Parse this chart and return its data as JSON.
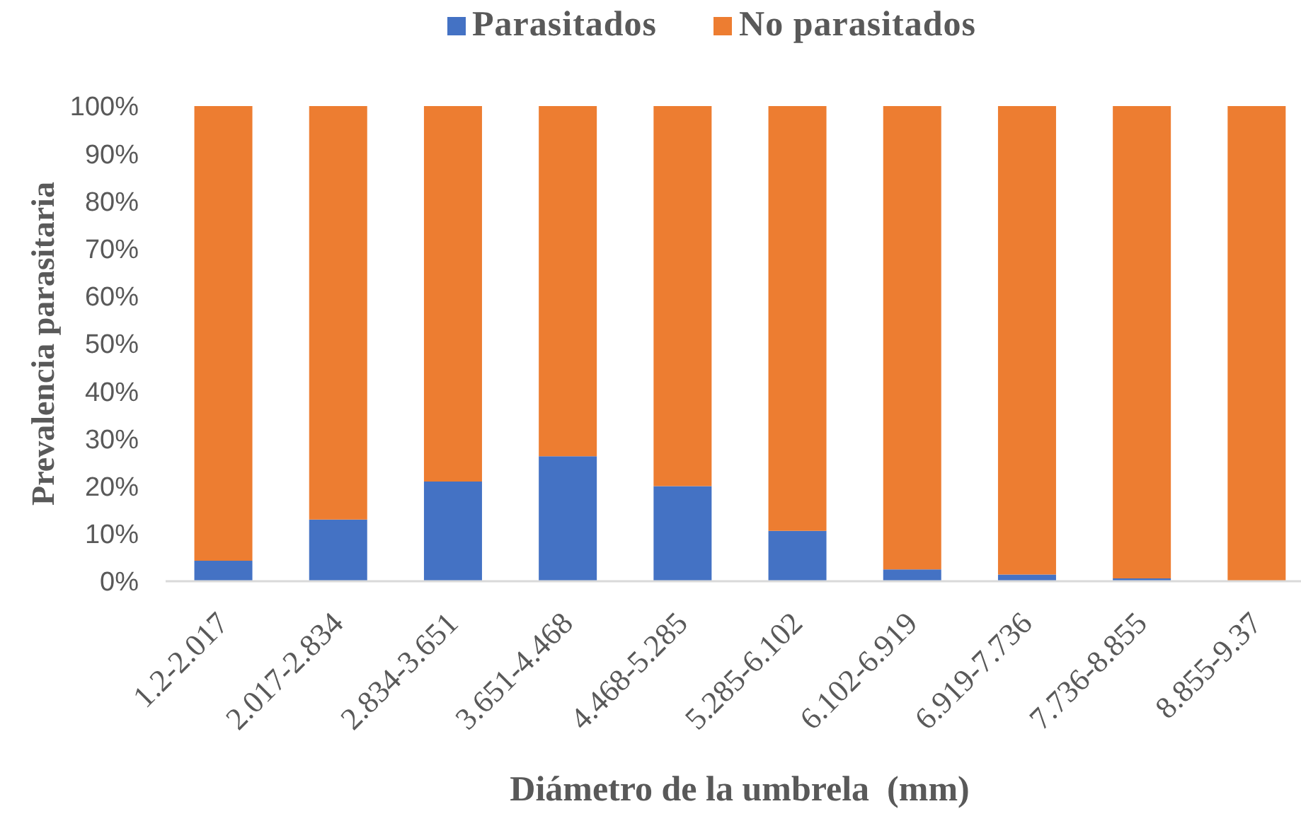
{
  "chart_data": {
    "type": "bar",
    "stacked": true,
    "xlabel": "Diámetro de la umbrela  (mm)",
    "ylabel": "Prevalencia parasitaria",
    "categories": [
      "1.2-2.017",
      "2.017-2.834",
      "2.834-3.651",
      "3.651-4.468",
      "4.468-5.285",
      "5.285-6.102",
      "6.102-6.919",
      "6.919-7.736",
      "7.736-8.855",
      "8.855-9.37"
    ],
    "series": [
      {
        "name": "Parasitados",
        "color": "#4472c4",
        "values": [
          4.3,
          13,
          21,
          26.3,
          20,
          10.6,
          2.5,
          1.4,
          0.6,
          0
        ]
      },
      {
        "name": "No parasitados",
        "color": "#ed7d31",
        "values": [
          95.7,
          87,
          79,
          73.7,
          80,
          89.4,
          97.5,
          98.6,
          99.4,
          100
        ]
      }
    ],
    "ylim": [
      0,
      100
    ],
    "yticks": [
      {
        "value": 0,
        "label": "0%"
      },
      {
        "value": 10,
        "label": "10%"
      },
      {
        "value": 20,
        "label": "20%"
      },
      {
        "value": 30,
        "label": "30%"
      },
      {
        "value": 40,
        "label": "40%"
      },
      {
        "value": 50,
        "label": "50%"
      },
      {
        "value": 60,
        "label": "60%"
      },
      {
        "value": 70,
        "label": "70%"
      },
      {
        "value": 80,
        "label": "80%"
      },
      {
        "value": 90,
        "label": "90%"
      },
      {
        "value": 100,
        "label": "100%"
      }
    ],
    "legend": "top",
    "grid": false
  }
}
